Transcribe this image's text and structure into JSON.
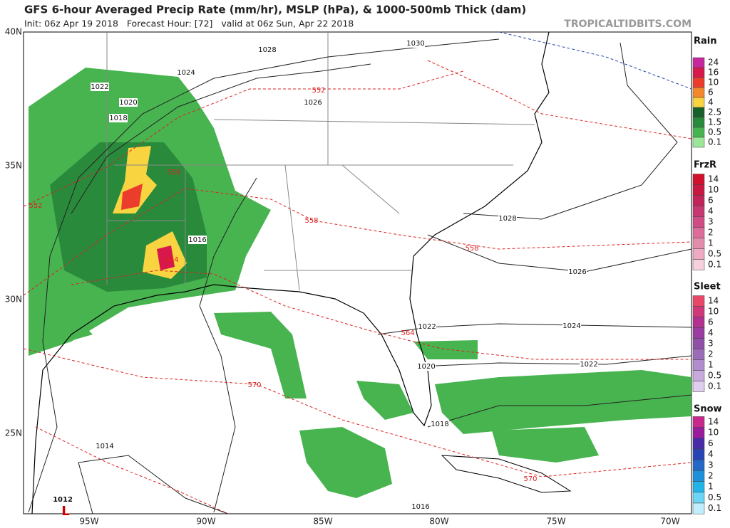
{
  "header": {
    "title": "GFS 6-hour Averaged Precip Rate (mm/hr), MSLP (hPa), & 1000-500mb Thick (dam)",
    "subtitle": "Init: 06z Apr 19 2018   Forecast Hour: [72]   valid at 06z Sun, Apr 22 2018",
    "site": "TROPICALTIDBITS.COM"
  },
  "map": {
    "latitude_labels": [
      "40N",
      "35N",
      "30N",
      "25N"
    ],
    "longitude_labels": [
      "95W",
      "90W",
      "85W",
      "80W",
      "75W",
      "70W"
    ],
    "isobar_labels": [
      "1028",
      "1030",
      "1024",
      "1022",
      "1026",
      "1020",
      "1018",
      "1016",
      "1028",
      "1026",
      "1024",
      "1022",
      "1022",
      "1020",
      "1018",
      "1014",
      "1016"
    ],
    "thickness_labels": [
      "552",
      "552",
      "558",
      "558",
      "558",
      "564",
      "564",
      "570",
      "570"
    ],
    "low_center": {
      "pressure": "1012",
      "symbol": "L"
    }
  },
  "legend": [
    {
      "title": "Rain",
      "labels": [
        "24",
        "16",
        "10",
        "6",
        "4",
        "2.5",
        "1.5",
        "0.5",
        "0.1"
      ],
      "colors": [
        "#c4289c",
        "#d8184a",
        "#ec3c2c",
        "#f4862c",
        "#f8d440",
        "#18602a",
        "#2a8a3c",
        "#48b450",
        "#9ce69a"
      ]
    },
    {
      "title": "FrzR",
      "labels": [
        "14",
        "10",
        "6",
        "4",
        "3",
        "2",
        "1",
        "0.5",
        "0.1"
      ],
      "colors": [
        "#d0102c",
        "#c81840",
        "#c02458",
        "#c83870",
        "#d04c84",
        "#dc6c98",
        "#e48cac",
        "#eeaac2",
        "#f6d0dc"
      ]
    },
    {
      "title": "Sleet",
      "labels": [
        "14",
        "10",
        "6",
        "4",
        "3",
        "2",
        "1",
        "0.5",
        "0.1"
      ],
      "colors": [
        "#e84868",
        "#d0387a",
        "#b43090",
        "#9a3ca0",
        "#9050a8",
        "#9c6cb8",
        "#b28ccc",
        "#c8aadc",
        "#e0ccec"
      ]
    },
    {
      "title": "Snow",
      "labels": [
        "14",
        "10",
        "6",
        "4",
        "3",
        "2",
        "1",
        "0.5",
        "0.1"
      ],
      "colors": [
        "#c8288c",
        "#9a1c9c",
        "#4a2ca8",
        "#2844b4",
        "#2468c8",
        "#1c90d8",
        "#20b4e8",
        "#6cd4f4",
        "#c0eefc"
      ]
    }
  ]
}
